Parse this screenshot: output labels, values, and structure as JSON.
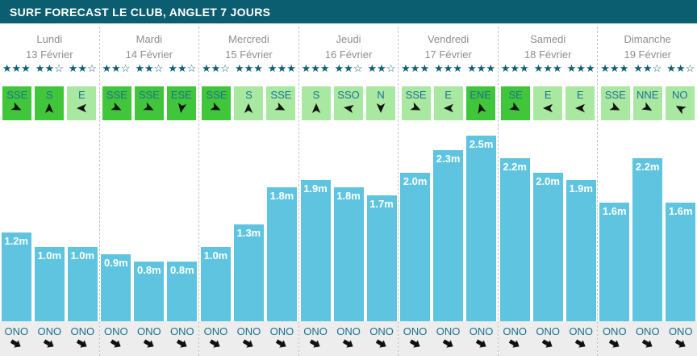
{
  "header": {
    "title": "SURF FORECAST LE CLUB, ANGLET 7 JOURS"
  },
  "colors": {
    "header_bg": "#0b5e70",
    "star": "#0d5f73",
    "bar": "#5ec4df",
    "wind_strong_bg": "#41c53b",
    "wind_light_bg": "#a9e8a0",
    "direction_text": "#1d6f95",
    "footer_band_bg": "#ededed",
    "day_text": "#8e8e8e",
    "divider": "#c4c4c4"
  },
  "stars_max_per_group": 3,
  "chart_data": {
    "type": "bar",
    "title": "SURF FORECAST LE CLUB, ANGLET 7 JOURS",
    "unit": "m",
    "categories": [
      "Lundi 13 Février",
      "Mardi 14 Février",
      "Mercredi 15 Février",
      "Jeudi 16 Février",
      "Vendredi 17 Février",
      "Samedi 18 Février",
      "Dimanche 19 Février"
    ],
    "values_per_day": [
      [
        1.2,
        1.0,
        1.0
      ],
      [
        0.9,
        0.8,
        0.8
      ],
      [
        1.0,
        1.3,
        1.8
      ],
      [
        1.9,
        1.8,
        1.7
      ],
      [
        2.0,
        2.3,
        2.5
      ],
      [
        2.2,
        2.0,
        1.9
      ],
      [
        1.6,
        2.2,
        1.6
      ]
    ],
    "value_labels": [
      [
        "1.2m",
        "1.0m",
        "1.0m"
      ],
      [
        "0.9m",
        "0.8m",
        "0.8m"
      ],
      [
        "1.0m",
        "1.3m",
        "1.8m"
      ],
      [
        "1.9m",
        "1.8m",
        "1.7m"
      ],
      [
        "2.0m",
        "2.3m",
        "2.5m"
      ],
      [
        "2.2m",
        "2.0m",
        "1.9m"
      ],
      [
        "1.6m",
        "2.2m",
        "1.6m"
      ]
    ],
    "ylim": [
      0,
      2.6
    ],
    "grid": false,
    "legend": false,
    "bar_color": "#5ec4df"
  },
  "days": [
    {
      "name": "Lundi",
      "date": "13 Février",
      "stars": [
        3,
        2,
        2
      ],
      "wind": [
        {
          "dir": "SSE",
          "strong": true,
          "rot": 25
        },
        {
          "dir": "S",
          "strong": true,
          "rot": -90
        },
        {
          "dir": "E",
          "strong": false,
          "rot": 180
        }
      ],
      "waves": [
        {
          "value": 1.2,
          "label": "1.2m"
        },
        {
          "value": 1.0,
          "label": "1.0m"
        },
        {
          "value": 1.0,
          "label": "1.0m"
        }
      ],
      "swell": [
        {
          "dir": "ONO",
          "rot": 30
        },
        {
          "dir": "ONO",
          "rot": 30
        },
        {
          "dir": "ONO",
          "rot": 30
        }
      ]
    },
    {
      "name": "Mardi",
      "date": "14 Février",
      "stars": [
        2,
        2,
        2
      ],
      "wind": [
        {
          "dir": "SSE",
          "strong": true,
          "rot": 25
        },
        {
          "dir": "SSE",
          "strong": true,
          "rot": 25
        },
        {
          "dir": "ESE",
          "strong": true,
          "rot": 100
        }
      ],
      "waves": [
        {
          "value": 0.9,
          "label": "0.9m"
        },
        {
          "value": 0.8,
          "label": "0.8m"
        },
        {
          "value": 0.8,
          "label": "0.8m"
        }
      ],
      "swell": [
        {
          "dir": "ONO",
          "rot": 30
        },
        {
          "dir": "ONO",
          "rot": 30
        },
        {
          "dir": "ONO",
          "rot": 30
        }
      ]
    },
    {
      "name": "Mercredi",
      "date": "15 Février",
      "stars": [
        2,
        3,
        3
      ],
      "wind": [
        {
          "dir": "SSE",
          "strong": true,
          "rot": 25
        },
        {
          "dir": "S",
          "strong": false,
          "rot": -90
        },
        {
          "dir": "SSE",
          "strong": false,
          "rot": 25
        }
      ],
      "waves": [
        {
          "value": 1.0,
          "label": "1.0m"
        },
        {
          "value": 1.3,
          "label": "1.3m"
        },
        {
          "value": 1.8,
          "label": "1.8m"
        }
      ],
      "swell": [
        {
          "dir": "ONO",
          "rot": 30
        },
        {
          "dir": "ONO",
          "rot": 30
        },
        {
          "dir": "ONO",
          "rot": 30
        }
      ]
    },
    {
      "name": "Jeudi",
      "date": "16 Février",
      "stars": [
        3,
        2,
        2
      ],
      "wind": [
        {
          "dir": "S",
          "strong": false,
          "rot": -90
        },
        {
          "dir": "SSO",
          "strong": false,
          "rot": 190
        },
        {
          "dir": "N",
          "strong": false,
          "rot": 90
        }
      ],
      "waves": [
        {
          "value": 1.9,
          "label": "1.9m"
        },
        {
          "value": 1.8,
          "label": "1.8m"
        },
        {
          "value": 1.7,
          "label": "1.7m"
        }
      ],
      "swell": [
        {
          "dir": "ONO",
          "rot": 30
        },
        {
          "dir": "ONO",
          "rot": 30
        },
        {
          "dir": "ONO",
          "rot": 30
        }
      ]
    },
    {
      "name": "Vendredi",
      "date": "17 Février",
      "stars": [
        3,
        3,
        3
      ],
      "wind": [
        {
          "dir": "SSE",
          "strong": false,
          "rot": 25
        },
        {
          "dir": "E",
          "strong": false,
          "rot": 180
        },
        {
          "dir": "ENE",
          "strong": true,
          "rot": -105
        }
      ],
      "waves": [
        {
          "value": 2.0,
          "label": "2.0m"
        },
        {
          "value": 2.3,
          "label": "2.3m"
        },
        {
          "value": 2.5,
          "label": "2.5m"
        }
      ],
      "swell": [
        {
          "dir": "ONO",
          "rot": 30
        },
        {
          "dir": "ONO",
          "rot": 30
        },
        {
          "dir": "ONO",
          "rot": 30
        }
      ]
    },
    {
      "name": "Samedi",
      "date": "18 Février",
      "stars": [
        3,
        3,
        3
      ],
      "wind": [
        {
          "dir": "SE",
          "strong": true,
          "rot": 30
        },
        {
          "dir": "E",
          "strong": false,
          "rot": 180
        },
        {
          "dir": "E",
          "strong": false,
          "rot": 180
        }
      ],
      "waves": [
        {
          "value": 2.2,
          "label": "2.2m"
        },
        {
          "value": 2.0,
          "label": "2.0m"
        },
        {
          "value": 1.9,
          "label": "1.9m"
        }
      ],
      "swell": [
        {
          "dir": "ONO",
          "rot": 30
        },
        {
          "dir": "ONO",
          "rot": 30
        },
        {
          "dir": "ONO",
          "rot": 30
        }
      ]
    },
    {
      "name": "Dimanche",
      "date": "19 Février",
      "stars": [
        3,
        2,
        2
      ],
      "wind": [
        {
          "dir": "SSE",
          "strong": false,
          "rot": 25
        },
        {
          "dir": "NNE",
          "strong": false,
          "rot": 30
        },
        {
          "dir": "NO",
          "strong": false,
          "rot": -150
        }
      ],
      "waves": [
        {
          "value": 1.6,
          "label": "1.6m"
        },
        {
          "value": 2.2,
          "label": "2.2m"
        },
        {
          "value": 1.6,
          "label": "1.6m"
        }
      ],
      "swell": [
        {
          "dir": "ONO",
          "rot": 30
        },
        {
          "dir": "ONO",
          "rot": 30
        },
        {
          "dir": "ONO",
          "rot": 30
        }
      ]
    }
  ]
}
